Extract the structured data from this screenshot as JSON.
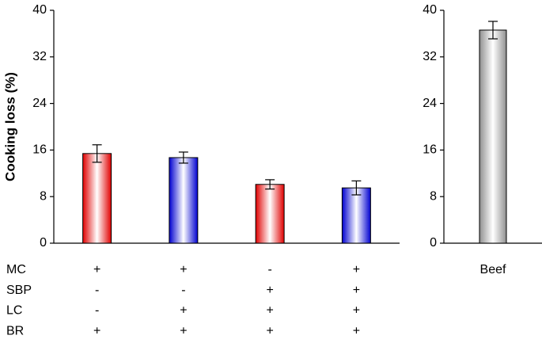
{
  "chart_data": [
    {
      "type": "bar",
      "y_label": "Cooking loss (%)",
      "categories": [
        null,
        null,
        null,
        null
      ],
      "values": [
        15.4,
        14.7,
        10.1,
        9.5
      ],
      "errors": [
        1.5,
        0.95,
        0.8,
        1.2
      ],
      "colors": [
        "#e00000",
        "#0000d0",
        "#e00000",
        "#0000d0"
      ],
      "ylim": [
        0,
        40
      ],
      "yticks": [
        0,
        8,
        16,
        24,
        32,
        40
      ],
      "table": {
        "rows": [
          {
            "label": "MC",
            "marks": [
              "+",
              "+",
              "-",
              "+"
            ]
          },
          {
            "label": "SBP",
            "marks": [
              "-",
              "-",
              "+",
              "+"
            ]
          },
          {
            "label": "LC",
            "marks": [
              "-",
              "+",
              "+",
              "+"
            ]
          },
          {
            "label": "BR",
            "marks": [
              "+",
              "+",
              "+",
              "+"
            ]
          }
        ]
      }
    },
    {
      "type": "bar",
      "categories": [
        "Beef"
      ],
      "values": [
        36.6
      ],
      "errors": [
        1.5
      ],
      "colors": [
        "#909090"
      ],
      "ylim": [
        0,
        40
      ],
      "yticks": [
        0,
        8,
        16,
        24,
        32,
        40
      ]
    }
  ]
}
